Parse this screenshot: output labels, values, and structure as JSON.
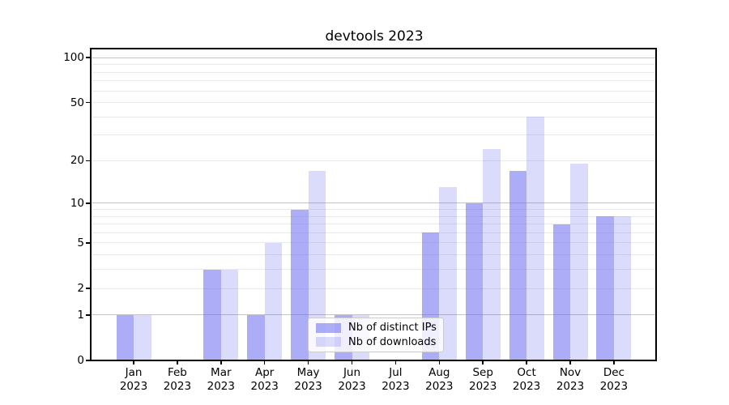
{
  "title": "devtools 2023",
  "chart_data": {
    "type": "bar",
    "title": "devtools 2023",
    "categories": [
      "Jan 2023",
      "Feb 2023",
      "Mar 2023",
      "Apr 2023",
      "May 2023",
      "Jun 2023",
      "Jul 2023",
      "Aug 2023",
      "Sep 2023",
      "Oct 2023",
      "Nov 2023",
      "Dec 2023"
    ],
    "series": [
      {
        "name": "Nb of distinct IPs",
        "color": "rgba(105,105,240,0.55)",
        "values": [
          1,
          0,
          3,
          1,
          9,
          1,
          0,
          6,
          10,
          17,
          7,
          8
        ]
      },
      {
        "name": "Nb of downloads",
        "color": "rgba(105,105,240,0.24)",
        "values": [
          1,
          0,
          3,
          5,
          17,
          1,
          0,
          13,
          24,
          40,
          19,
          8
        ]
      }
    ],
    "yscale": "log1p",
    "ylim": [
      0,
      115
    ],
    "yticks": [
      0,
      1,
      2,
      5,
      10,
      20,
      50,
      100
    ],
    "major_gridlines": [
      1,
      10,
      100
    ],
    "minor_gridlines": [
      2,
      3,
      4,
      5,
      6,
      7,
      8,
      9,
      20,
      30,
      40,
      50,
      60,
      70,
      80,
      90
    ],
    "grid": "horizontal",
    "legend_position": "lower-center"
  },
  "colors": {
    "major_grid": "#c3c3c3",
    "minor_grid": "#e9e9e9",
    "axis": "#000000",
    "legend_bg": "rgba(255,255,255,0.8)",
    "legend_border": "#cccccc"
  }
}
